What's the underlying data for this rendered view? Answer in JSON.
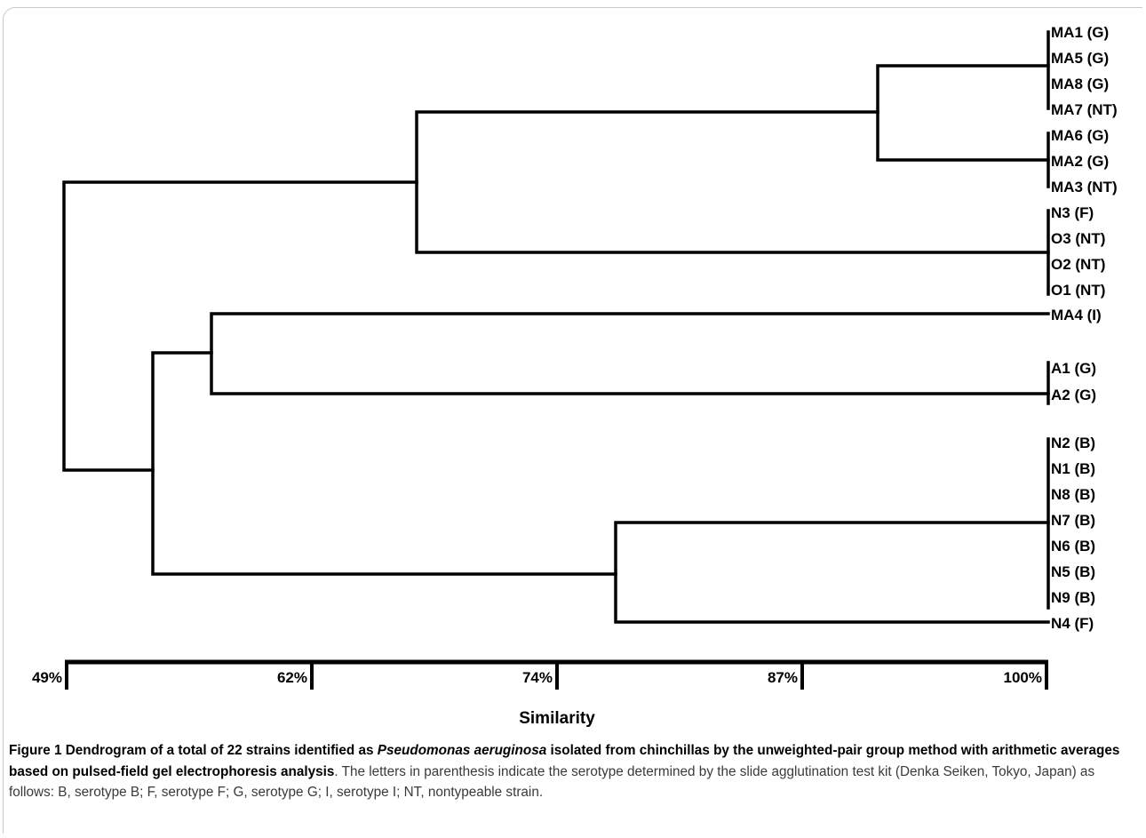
{
  "axis": {
    "title": "Similarity",
    "ticks": [
      "49%",
      "62%",
      "74%",
      "87%",
      "100%"
    ]
  },
  "leaves": [
    "MA1 (G)",
    "MA5 (G)",
    "MA8 (G)",
    "MA7 (NT)",
    "MA6 (G)",
    "MA2 (G)",
    "MA3 (NT)",
    "N3 (F)",
    "O3 (NT)",
    "O2 (NT)",
    "O1 (NT)",
    "MA4 (I)",
    "A1 (G)",
    "A2 (G)",
    "N2 (B)",
    "N1 (B)",
    "N8 (B)",
    "N7 (B)",
    "N6 (B)",
    "N5 (B)",
    "N9 (B)",
    "N4 (F)"
  ],
  "caption": {
    "label": "Figure 1",
    "title_pre": "Dendrogram of a total of 22 strains identified as ",
    "title_italic": "Pseudomonas aeruginosa",
    "title_post": " isolated from chinchillas by the unweighted-pair group method with arithmetic averages based on pulsed-field gel electrophoresis analysis",
    "body": ". The letters in parenthesis indicate the serotype determined by the slide agglutination test kit (Denka Seiken, Tokyo, Japan) as follows: B, serotype B; F, serotype F; G, serotype G; I, serotype I; NT, nontypeable strain."
  }
}
